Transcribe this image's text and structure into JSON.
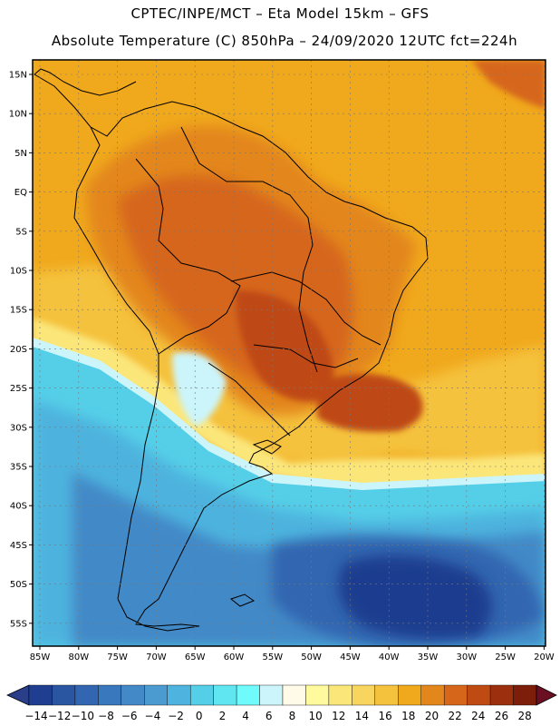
{
  "title_line1": "CPTEC/INPE/MCT –  Eta Model 15km – GFS",
  "title_line2": "Absolute Temperature (C) 850hPa – 24/09/2020 12UTC fct=224h",
  "lat_labels": [
    "15N",
    "10N",
    "5N",
    "EQ",
    "5S",
    "10S",
    "15S",
    "20S",
    "25S",
    "30S",
    "35S",
    "40S",
    "45S",
    "50S",
    "55S"
  ],
  "lon_labels": [
    "85W",
    "80W",
    "75W",
    "70W",
    "65W",
    "60W",
    "55W",
    "50W",
    "45W",
    "40W",
    "35W",
    "30W",
    "25W",
    "20W"
  ],
  "colorbar": {
    "labels": [
      "-14",
      "-12",
      "-10",
      "-8",
      "-6",
      "-4",
      "-2",
      "0",
      "2",
      "4",
      "6",
      "8",
      "10",
      "12",
      "14",
      "16",
      "18",
      "20",
      "22",
      "24",
      "26",
      "28"
    ],
    "colors": [
      "#1f3e8f",
      "#2a55a0",
      "#3366b0",
      "#3a78bd",
      "#4389c7",
      "#4b9bd1",
      "#4eb3de",
      "#55cfe8",
      "#5fe6f0",
      "#6ffbfb",
      "#ccf5fb",
      "#fffbe8",
      "#fffa9d",
      "#fbe67a",
      "#f8d55e",
      "#f5c23e",
      "#f0a81c",
      "#e3861b",
      "#d6661a",
      "#bf4a12",
      "#9c2f0d",
      "#7d1e0a"
    ]
  }
}
